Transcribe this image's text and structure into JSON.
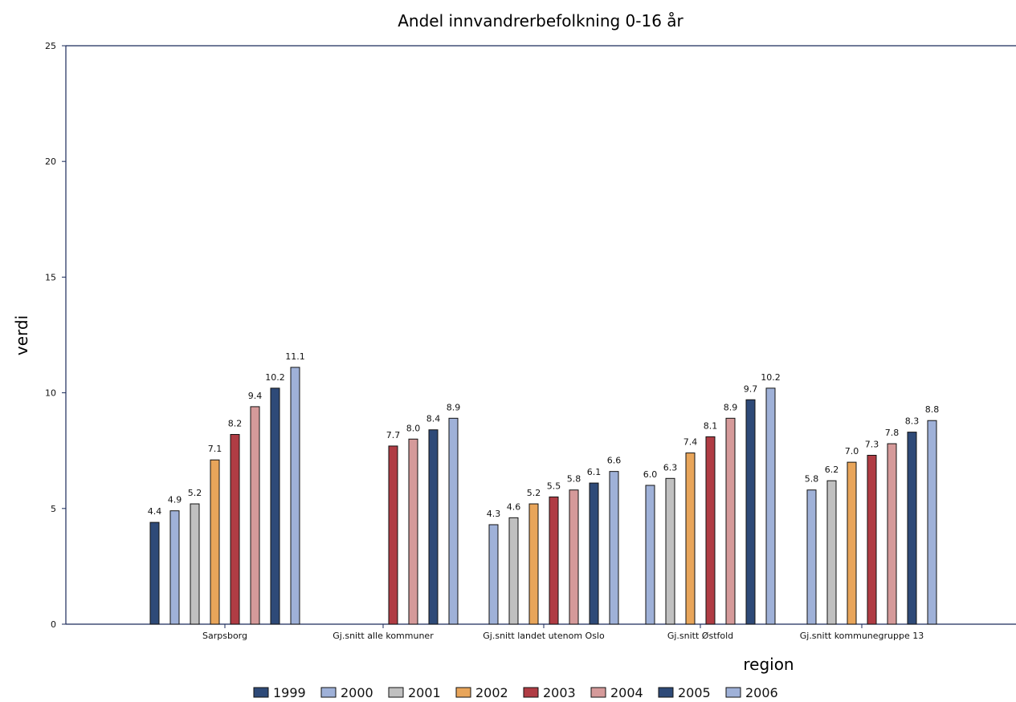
{
  "chart_data": {
    "type": "bar",
    "title": "Andel innvandrerbefolkning 0-16 år",
    "xlabel": "region",
    "ylabel": "verdi",
    "ylim": [
      0,
      25
    ],
    "yticks": [
      "0",
      "5",
      "10",
      "15",
      "20",
      "25"
    ],
    "grid": false,
    "legend_position": "bottom",
    "categories": [
      "Sarpsborg",
      "Gj.snitt alle kommuner",
      "Gj.snitt landet utenom Oslo",
      "Gj.snitt Østfold",
      "Gj.snitt kommunegruppe 13"
    ],
    "series": [
      {
        "name": "1999",
        "color": "#2e4a78",
        "values": [
          4.4,
          null,
          null,
          null,
          null
        ],
        "labels": [
          "4.4",
          "",
          "",
          "",
          ""
        ]
      },
      {
        "name": "2000",
        "color": "#9fb1d8",
        "values": [
          4.9,
          null,
          4.3,
          6.0,
          5.8
        ],
        "labels": [
          "4.9",
          "",
          "4.3",
          "6.0",
          "5.8"
        ]
      },
      {
        "name": "2001",
        "color": "#c0c0c0",
        "values": [
          5.2,
          null,
          4.6,
          6.3,
          6.2
        ],
        "labels": [
          "5.2",
          "",
          "4.6",
          "6.3",
          "6.2"
        ]
      },
      {
        "name": "2002",
        "color": "#e8a55a",
        "values": [
          7.1,
          null,
          5.2,
          7.4,
          7.0
        ],
        "labels": [
          "7.1",
          "",
          "5.2",
          "7.4",
          "7.0"
        ]
      },
      {
        "name": "2003",
        "color": "#b03c44",
        "values": [
          8.2,
          7.7,
          5.5,
          8.1,
          7.3
        ],
        "labels": [
          "8.2",
          "7.7",
          "5.5",
          "8.1",
          "7.3"
        ]
      },
      {
        "name": "2004",
        "color": "#d59a9a",
        "values": [
          9.4,
          8.0,
          5.8,
          8.9,
          7.8
        ],
        "labels": [
          "9.4",
          "8.0",
          "5.8",
          "8.9",
          "7.8"
        ]
      },
      {
        "name": "2005",
        "color": "#2e4a78",
        "values": [
          10.2,
          8.4,
          6.1,
          9.7,
          8.3
        ],
        "labels": [
          "10.2",
          "8.4",
          "6.1",
          "9.7",
          "8.3"
        ]
      },
      {
        "name": "2006",
        "color": "#9fb1d8",
        "values": [
          11.1,
          8.9,
          6.6,
          10.2,
          8.8
        ],
        "labels": [
          "11.1",
          "8.9",
          "6.6",
          "10.2",
          "8.8"
        ]
      }
    ]
  }
}
